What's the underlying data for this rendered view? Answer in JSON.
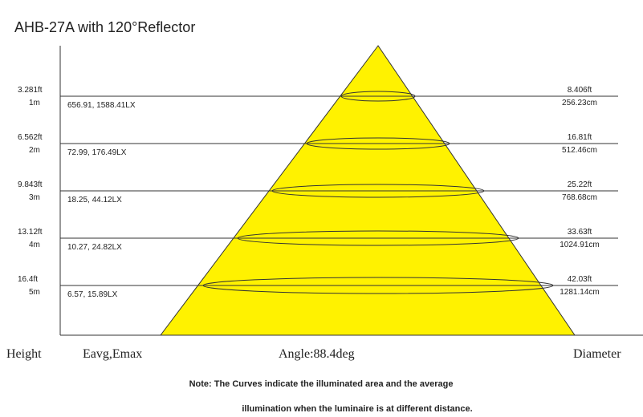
{
  "title": "AHB-27A with 120°Reflector",
  "rows": [
    {
      "height_ft": "3.281ft",
      "height_m": "1m",
      "illuminance": "656.91, 1588.41LX",
      "diameter_ft": "8.406ft",
      "diameter_cm": "256.23cm"
    },
    {
      "height_ft": "6.562ft",
      "height_m": "2m",
      "illuminance": "72.99,   176.49LX",
      "diameter_ft": "16.81ft",
      "diameter_cm": "512.46cm"
    },
    {
      "height_ft": "9.843ft",
      "height_m": "3m",
      "illuminance": "18.25, 44.12LX",
      "diameter_ft": "25.22ft",
      "diameter_cm": "768.68cm"
    },
    {
      "height_ft": "13.12ft",
      "height_m": "4m",
      "illuminance": "10.27,  24.82LX",
      "diameter_ft": "33.63ft",
      "diameter_cm": "1024.91cm"
    },
    {
      "height_ft": "16.4ft",
      "height_m": "5m",
      "illuminance": "6.57, 15.89LX",
      "diameter_ft": "42.03ft",
      "diameter_cm": "1281.14cm"
    }
  ],
  "footer": {
    "height": "Height",
    "illuminance": "Eavg,Emax",
    "angle": "Angle:88.4deg",
    "diameter": "Diameter"
  },
  "notes": [
    "Note: The Curves indicate the illuminated area and the average",
    "illumination when the luminaire is at different distance."
  ]
}
